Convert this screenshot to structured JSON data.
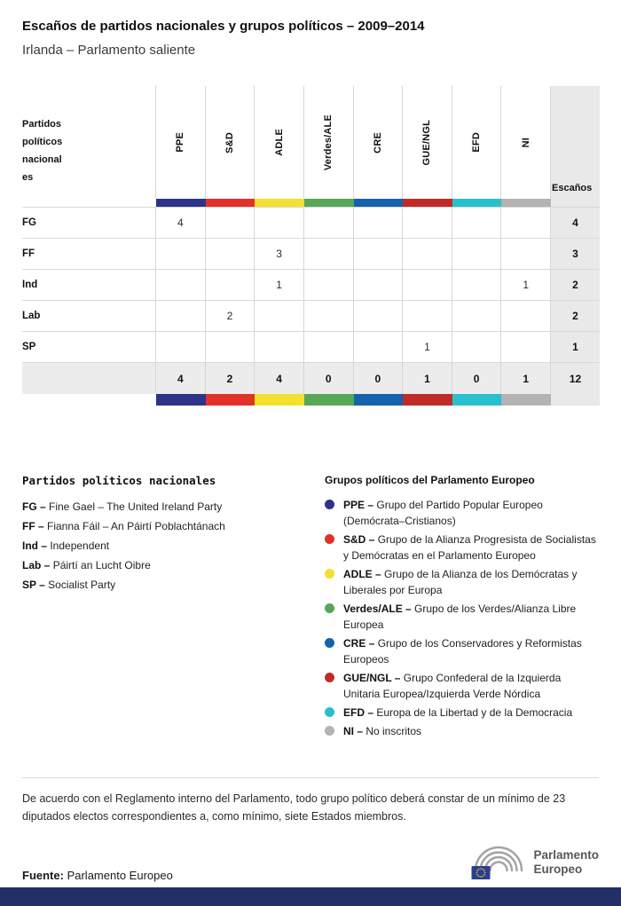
{
  "header": {
    "title": "Escaños de partidos nacionales y grupos políticos – 2009–2014",
    "subtitle": "Irlanda – Parlamento saliente"
  },
  "table": {
    "first_col_header": "Partidos\npolíticos\nnacional\nes",
    "seats_header": "Escaños",
    "groups": [
      {
        "label": "PPE",
        "color": "#2d3389"
      },
      {
        "label": "S&D",
        "color": "#e23128"
      },
      {
        "label": "ADLE",
        "color": "#f2e12e"
      },
      {
        "label": "Verdes/ALE",
        "color": "#57a757"
      },
      {
        "label": "CRE",
        "color": "#1562ad"
      },
      {
        "label": "GUE/NGL",
        "color": "#c12b27"
      },
      {
        "label": "EFD",
        "color": "#29c0cd"
      },
      {
        "label": "NI",
        "color": "#b3b3b3"
      }
    ],
    "rows": [
      {
        "party": "FG",
        "values": [
          "4",
          "",
          "",
          "",
          "",
          "",
          "",
          ""
        ],
        "total": "4"
      },
      {
        "party": "FF",
        "values": [
          "",
          "",
          "3",
          "",
          "",
          "",
          "",
          ""
        ],
        "total": "3"
      },
      {
        "party": "Ind",
        "values": [
          "",
          "",
          "1",
          "",
          "",
          "",
          "",
          "1"
        ],
        "total": "2"
      },
      {
        "party": "Lab",
        "values": [
          "",
          "2",
          "",
          "",
          "",
          "",
          "",
          ""
        ],
        "total": "2"
      },
      {
        "party": "SP",
        "values": [
          "",
          "",
          "",
          "",
          "",
          "1",
          "",
          ""
        ],
        "total": "1"
      }
    ],
    "totals": {
      "values": [
        "4",
        "2",
        "4",
        "0",
        "0",
        "1",
        "0",
        "1"
      ],
      "total": "12"
    }
  },
  "legend_parties": {
    "title": "Partidos políticos nacionales",
    "items": [
      {
        "abbr": "FG",
        "name": "Fine Gael – The United Ireland Party"
      },
      {
        "abbr": "FF",
        "name": "Fianna Fáil – An Páirtí Poblachtánach"
      },
      {
        "abbr": "Ind",
        "name": "Independent"
      },
      {
        "abbr": "Lab",
        "name": "Páirtí an Lucht Oibre"
      },
      {
        "abbr": "SP",
        "name": "Socialist Party"
      }
    ]
  },
  "legend_groups": {
    "title": "Grupos políticos del Parlamento Europeo",
    "items": [
      {
        "abbr": "PPE",
        "name": "Grupo del Partido Popular Europeo (Demócrata–Cristianos)",
        "color": "#2d3389"
      },
      {
        "abbr": "S&D",
        "name": "Grupo de la Alianza Progresista de Socialistas y Demócratas en el Parlamento Europeo",
        "color": "#e23128"
      },
      {
        "abbr": "ADLE",
        "name": "Grupo de la Alianza de los Demócratas y Liberales por Europa",
        "color": "#f2e12e"
      },
      {
        "abbr": "Verdes/ALE",
        "name": "Grupo de los Verdes/Alianza Libre Europea",
        "color": "#57a757"
      },
      {
        "abbr": "CRE",
        "name": "Grupo de los Conservadores y Reformistas Europeos",
        "color": "#1562ad"
      },
      {
        "abbr": "GUE/NGL",
        "name": "Grupo Confederal de la Izquierda Unitaria Europea/Izquierda Verde Nórdica",
        "color": "#c12b27"
      },
      {
        "abbr": "EFD",
        "name": "Europa de la Libertad y de la Democracia",
        "color": "#29c0cd"
      },
      {
        "abbr": "NI",
        "name": "No inscritos",
        "color": "#b3b3b3"
      }
    ]
  },
  "footnote": "De acuerdo con el Reglamento interno del Parlamento, todo grupo político deberá constar de un mínimo de 23 diputados electos correspondientes a, como mínimo, siete Estados miembros.",
  "footer": {
    "source_label": "Fuente:",
    "source_value": "Parlamento Europeo",
    "logo_line1": "Parlamento",
    "logo_line2": "Europeo"
  },
  "colors": {
    "bottom_bar": "#232f66"
  },
  "chart_data": {
    "type": "table",
    "title": "Escaños de partidos nacionales y grupos políticos – 2009–2014",
    "subtitle": "Irlanda – Parlamento saliente",
    "columns": [
      "PPE",
      "S&D",
      "ADLE",
      "Verdes/ALE",
      "CRE",
      "GUE/NGL",
      "EFD",
      "NI",
      "Escaños"
    ],
    "rows": [
      {
        "party": "FG",
        "seats": {
          "PPE": 4
        },
        "total": 4
      },
      {
        "party": "FF",
        "seats": {
          "ADLE": 3
        },
        "total": 3
      },
      {
        "party": "Ind",
        "seats": {
          "ADLE": 1,
          "NI": 1
        },
        "total": 2
      },
      {
        "party": "Lab",
        "seats": {
          "S&D": 2
        },
        "total": 2
      },
      {
        "party": "SP",
        "seats": {
          "GUE/NGL": 1
        },
        "total": 1
      }
    ],
    "totals": {
      "PPE": 4,
      "S&D": 2,
      "ADLE": 4,
      "Verdes/ALE": 0,
      "CRE": 0,
      "GUE/NGL": 1,
      "EFD": 0,
      "NI": 1,
      "total": 12
    }
  }
}
